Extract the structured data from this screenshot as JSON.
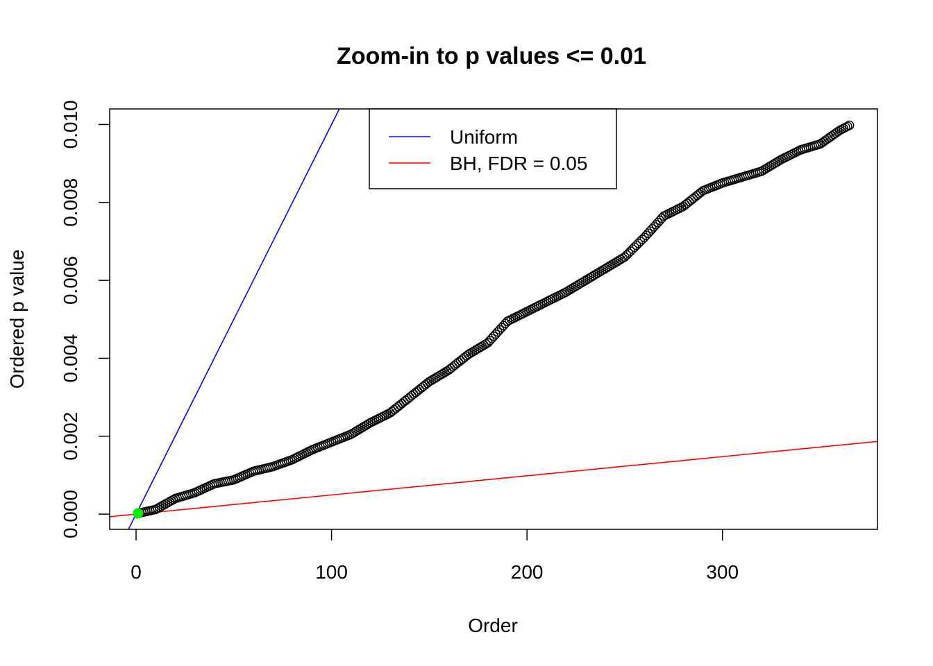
{
  "chart_data": {
    "type": "scatter",
    "title": "Zoom-in to p values <= 0.01",
    "xlabel": "Order",
    "ylabel": "Ordered p value",
    "xlim": [
      -13.5,
      379.3
    ],
    "ylim": [
      -0.00039,
      0.0104
    ],
    "x_ticks": [
      0,
      100,
      200,
      300
    ],
    "x_tick_labels": [
      "0",
      "100",
      "200",
      "300"
    ],
    "y_ticks": [
      0,
      0.002,
      0.004,
      0.006,
      0.008,
      0.01
    ],
    "y_tick_labels": [
      "0.000",
      "0.002",
      "0.004",
      "0.006",
      "0.008",
      "0.010"
    ],
    "grid": false,
    "legend_position": "top-center",
    "n_points": 365,
    "points_profile": [
      [
        1,
        2e-05
      ],
      [
        10,
        0.00012
      ],
      [
        20,
        0.0004
      ],
      [
        30,
        0.00055
      ],
      [
        40,
        0.00078
      ],
      [
        50,
        0.00088
      ],
      [
        60,
        0.0011
      ],
      [
        70,
        0.00122
      ],
      [
        80,
        0.0014
      ],
      [
        90,
        0.00165
      ],
      [
        100,
        0.00185
      ],
      [
        110,
        0.00205
      ],
      [
        120,
        0.00235
      ],
      [
        130,
        0.0026
      ],
      [
        140,
        0.003
      ],
      [
        150,
        0.0034
      ],
      [
        160,
        0.0037
      ],
      [
        170,
        0.0041
      ],
      [
        180,
        0.0044
      ],
      [
        190,
        0.00495
      ],
      [
        200,
        0.0052
      ],
      [
        210,
        0.00545
      ],
      [
        220,
        0.0057
      ],
      [
        230,
        0.006
      ],
      [
        240,
        0.0063
      ],
      [
        250,
        0.0066
      ],
      [
        260,
        0.0071
      ],
      [
        270,
        0.00765
      ],
      [
        280,
        0.0079
      ],
      [
        290,
        0.0083
      ],
      [
        300,
        0.0085
      ],
      [
        310,
        0.00865
      ],
      [
        320,
        0.0088
      ],
      [
        330,
        0.0091
      ],
      [
        340,
        0.00935
      ],
      [
        350,
        0.0095
      ],
      [
        360,
        0.00985
      ],
      [
        365,
        0.00998
      ]
    ],
    "highlighted_points": [
      {
        "x": 1,
        "y": 2e-05,
        "color": "#00ee00"
      }
    ],
    "series": [
      {
        "name": "Uniform",
        "type": "line",
        "color": "#0000ff",
        "slope": 0.0001,
        "intercept": 0
      },
      {
        "name": "BH, FDR = 0.05",
        "type": "line",
        "color": "#ff0000",
        "slope": 4.92e-06,
        "intercept": 0
      }
    ],
    "point_style": {
      "stroke": "#000000",
      "fill": "none"
    }
  }
}
